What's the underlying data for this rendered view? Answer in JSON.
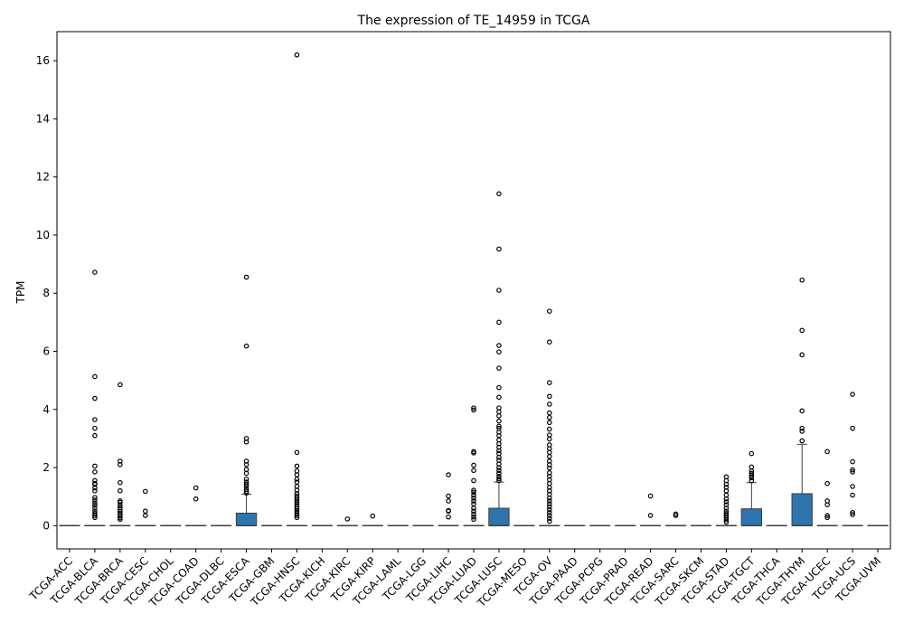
{
  "chart_data": {
    "type": "boxplot",
    "title": "The expression of TE_14959 in TCGA",
    "xlabel": "",
    "ylabel": "TPM",
    "ylim": [
      -0.8,
      17
    ],
    "yticks": [
      0,
      2,
      4,
      6,
      8,
      10,
      12,
      14,
      16
    ],
    "grid": false,
    "legend": "none",
    "box_color": "#2e75b0",
    "categories": [
      "TCGA-ACC",
      "TCGA-BLCA",
      "TCGA-BRCA",
      "TCGA-CESC",
      "TCGA-CHOL",
      "TCGA-COAD",
      "TCGA-DLBC",
      "TCGA-ESCA",
      "TCGA-GBM",
      "TCGA-HNSC",
      "TCGA-KICH",
      "TCGA-KIRC",
      "TCGA-KIRP",
      "TCGA-LAML",
      "TCGA-LGG",
      "TCGA-LIHC",
      "TCGA-LUAD",
      "TCGA-LUSC",
      "TCGA-MESO",
      "TCGA-OV",
      "TCGA-PAAD",
      "TCGA-PCPG",
      "TCGA-PRAD",
      "TCGA-READ",
      "TCGA-SARC",
      "TCGA-SKCM",
      "TCGA-STAD",
      "TCGA-TGCT",
      "TCGA-THCA",
      "TCGA-THYM",
      "TCGA-UCEC",
      "TCGA-UCS",
      "TCGA-UVM"
    ],
    "boxes": [
      {
        "q1": 0,
        "median": 0,
        "q3": 0,
        "whisker_low": 0,
        "whisker_high": 0,
        "outliers": []
      },
      {
        "q1": 0,
        "median": 0,
        "q3": 0,
        "whisker_low": 0,
        "whisker_high": 0,
        "outliers": [
          8.72,
          5.13,
          4.38,
          3.65,
          3.35,
          3.1,
          2.05,
          1.85,
          1.55,
          1.45,
          1.42,
          1.3,
          1.2,
          0.97,
          0.88,
          0.78,
          0.7,
          0.6,
          0.5,
          0.42,
          0.35,
          0.28
        ]
      },
      {
        "q1": 0,
        "median": 0,
        "q3": 0,
        "whisker_low": 0,
        "whisker_high": 0,
        "outliers": [
          4.85,
          2.22,
          2.1,
          1.48,
          1.2,
          0.85,
          0.8,
          0.7,
          0.62,
          0.55,
          0.48,
          0.4,
          0.33,
          0.27,
          0.22
        ]
      },
      {
        "q1": 0,
        "median": 0,
        "q3": 0,
        "whisker_low": 0,
        "whisker_high": 0,
        "outliers": [
          1.18,
          0.5,
          0.35
        ]
      },
      {
        "q1": 0,
        "median": 0,
        "q3": 0,
        "whisker_low": 0,
        "whisker_high": 0,
        "outliers": []
      },
      {
        "q1": 0,
        "median": 0,
        "q3": 0,
        "whisker_low": 0,
        "whisker_high": 0,
        "outliers": [
          1.3,
          0.92
        ]
      },
      {
        "q1": 0,
        "median": 0,
        "q3": 0,
        "whisker_low": 0,
        "whisker_high": 0,
        "outliers": []
      },
      {
        "q1": 0,
        "median": 0,
        "q3": 0.43,
        "whisker_low": 0,
        "whisker_high": 1.08,
        "outliers": [
          8.55,
          6.18,
          3.0,
          2.88,
          2.22,
          2.1,
          1.93,
          1.8,
          1.6,
          1.5,
          1.42,
          1.35,
          1.25,
          1.18,
          1.12
        ]
      },
      {
        "q1": 0,
        "median": 0,
        "q3": 0,
        "whisker_low": 0,
        "whisker_high": 0,
        "outliers": []
      },
      {
        "q1": 0,
        "median": 0,
        "q3": 0,
        "whisker_low": 0,
        "whisker_high": 0,
        "outliers": [
          16.2,
          2.52,
          2.05,
          1.88,
          1.75,
          1.6,
          1.5,
          1.35,
          1.22,
          1.1,
          1.02,
          0.95,
          0.88,
          0.8,
          0.72,
          0.65,
          0.58,
          0.5,
          0.42,
          0.35,
          0.28
        ]
      },
      {
        "q1": 0,
        "median": 0,
        "q3": 0,
        "whisker_low": 0,
        "whisker_high": 0,
        "outliers": []
      },
      {
        "q1": 0,
        "median": 0,
        "q3": 0,
        "whisker_low": 0,
        "whisker_high": 0,
        "outliers": [
          0.23
        ]
      },
      {
        "q1": 0,
        "median": 0,
        "q3": 0,
        "whisker_low": 0,
        "whisker_high": 0,
        "outliers": [
          0.33
        ]
      },
      {
        "q1": 0,
        "median": 0,
        "q3": 0,
        "whisker_low": 0,
        "whisker_high": 0,
        "outliers": []
      },
      {
        "q1": 0,
        "median": 0,
        "q3": 0,
        "whisker_low": 0,
        "whisker_high": 0,
        "outliers": []
      },
      {
        "q1": 0,
        "median": 0,
        "q3": 0,
        "whisker_low": 0,
        "whisker_high": 0,
        "outliers": [
          1.75,
          1.02,
          0.85,
          0.52,
          0.5,
          0.3
        ]
      },
      {
        "q1": 0,
        "median": 0,
        "q3": 0,
        "whisker_low": 0,
        "whisker_high": 0,
        "outliers": [
          4.05,
          3.98,
          2.55,
          2.5,
          2.08,
          1.9,
          1.55,
          1.22,
          1.15,
          1.05,
          0.95,
          0.85,
          0.75,
          0.6,
          0.5,
          0.4,
          0.3,
          0.22
        ]
      },
      {
        "q1": 0,
        "median": 0,
        "q3": 0.6,
        "whisker_low": 0,
        "whisker_high": 1.5,
        "outliers": [
          11.42,
          9.52,
          8.1,
          7.0,
          6.2,
          5.98,
          5.42,
          4.75,
          4.42,
          4.05,
          3.92,
          3.78,
          3.6,
          3.42,
          3.35,
          3.22,
          3.1,
          2.95,
          2.82,
          2.7,
          2.58,
          2.48,
          2.35,
          2.25,
          2.12,
          2.0,
          1.9,
          1.8,
          1.7,
          1.62,
          1.55
        ]
      },
      {
        "q1": 0,
        "median": 0,
        "q3": 0,
        "whisker_low": 0,
        "whisker_high": 0,
        "outliers": []
      },
      {
        "q1": 0,
        "median": 0,
        "q3": 0,
        "whisker_low": 0,
        "whisker_high": 0,
        "outliers": [
          7.38,
          6.32,
          4.92,
          4.45,
          4.18,
          3.88,
          3.72,
          3.55,
          3.32,
          3.12,
          2.98,
          2.78,
          2.65,
          2.52,
          2.38,
          2.22,
          2.1,
          1.98,
          1.82,
          1.7,
          1.58,
          1.45,
          1.32,
          1.2,
          1.08,
          0.95,
          0.85,
          0.75,
          0.65,
          0.55,
          0.45,
          0.35,
          0.25,
          0.15
        ]
      },
      {
        "q1": 0,
        "median": 0,
        "q3": 0,
        "whisker_low": 0,
        "whisker_high": 0,
        "outliers": []
      },
      {
        "q1": 0,
        "median": 0,
        "q3": 0,
        "whisker_low": 0,
        "whisker_high": 0,
        "outliers": []
      },
      {
        "q1": 0,
        "median": 0,
        "q3": 0,
        "whisker_low": 0,
        "whisker_high": 0,
        "outliers": []
      },
      {
        "q1": 0,
        "median": 0,
        "q3": 0,
        "whisker_low": 0,
        "whisker_high": 0,
        "outliers": [
          1.02,
          0.35
        ]
      },
      {
        "q1": 0,
        "median": 0,
        "q3": 0,
        "whisker_low": 0,
        "whisker_high": 0,
        "outliers": [
          0.4,
          0.35
        ]
      },
      {
        "q1": 0,
        "median": 0,
        "q3": 0,
        "whisker_low": 0,
        "whisker_high": 0,
        "outliers": []
      },
      {
        "q1": 0,
        "median": 0,
        "q3": 0,
        "whisker_low": 0,
        "whisker_high": 0,
        "outliers": [
          1.68,
          1.55,
          1.42,
          1.32,
          1.2,
          1.05,
          0.92,
          0.82,
          0.72,
          0.6,
          0.5,
          0.42,
          0.35,
          0.28,
          0.2,
          0.12
        ]
      },
      {
        "q1": 0,
        "median": 0,
        "q3": 0.58,
        "whisker_low": 0,
        "whisker_high": 1.48,
        "outliers": [
          2.48,
          2.02,
          1.88,
          1.8,
          1.72,
          1.65,
          1.55
        ]
      },
      {
        "q1": 0,
        "median": 0,
        "q3": 0,
        "whisker_low": 0,
        "whisker_high": 0,
        "outliers": []
      },
      {
        "q1": 0,
        "median": 0,
        "q3": 1.1,
        "whisker_low": 0,
        "whisker_high": 2.8,
        "outliers": [
          8.45,
          6.72,
          5.88,
          3.95,
          3.35,
          3.25,
          2.92
        ]
      },
      {
        "q1": 0,
        "median": 0,
        "q3": 0,
        "whisker_low": 0,
        "whisker_high": 0,
        "outliers": [
          2.55,
          1.45,
          0.85,
          0.72,
          0.35,
          0.28
        ]
      },
      {
        "q1": 0,
        "median": 0,
        "q3": 0,
        "whisker_low": 0,
        "whisker_high": 0,
        "outliers": [
          4.52,
          3.35,
          2.2,
          1.92,
          1.85,
          1.35,
          1.05,
          0.45,
          0.38
        ]
      },
      {
        "q1": 0,
        "median": 0,
        "q3": 0,
        "whisker_low": 0,
        "whisker_high": 0,
        "outliers": []
      }
    ]
  }
}
